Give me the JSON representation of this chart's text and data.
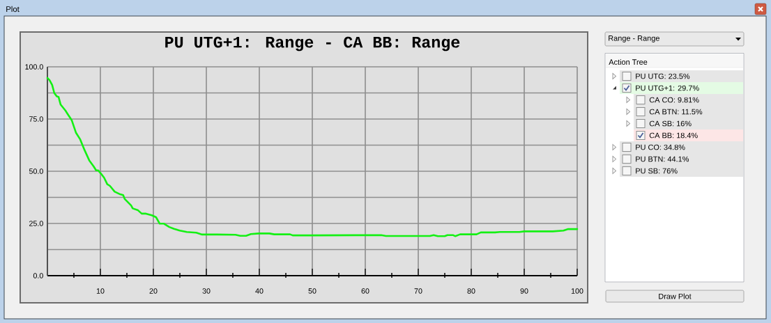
{
  "chart_data": [
    {
      "type": "line",
      "title": "PU UTG+1: Range - CA BB: Range",
      "x": [
        0,
        0.4,
        0.9,
        1.3,
        1.8,
        2.1,
        2.5,
        3.4,
        3.9,
        4.6,
        5.4,
        6.2,
        7.0,
        7.9,
        8.7,
        9.2,
        9.6,
        10.1,
        10.7,
        11.3,
        11.8,
        12.7,
        13.6,
        14.3,
        14.6,
        15.8,
        16.1,
        17.1,
        17.8,
        18.6,
        19.7,
        20.5,
        21.2,
        22.0,
        23.0,
        23.9,
        25.0,
        26.3,
        28.1,
        29.2,
        32.0,
        35.5,
        36.4,
        37.5,
        38.4,
        39.9,
        41.9,
        42.8,
        45.8,
        46.3,
        50.0,
        63.0,
        63.9,
        72.2,
        72.9,
        73.7,
        75.0,
        75.5,
        76.6,
        77.0,
        77.9,
        81.0,
        81.8,
        84.5,
        85.4,
        89.1,
        90.0,
        95.4,
        97.4,
        98.3,
        100.0
      ],
      "values": [
        94.7,
        93.6,
        91.3,
        87.4,
        85.8,
        85.6,
        81.9,
        79.1,
        77.1,
        74.4,
        68.4,
        65.2,
        60.2,
        55.2,
        52.4,
        50.4,
        50.4,
        48.9,
        46.9,
        43.8,
        43.0,
        40.2,
        39.1,
        38.6,
        36.7,
        33.6,
        32.2,
        31.3,
        29.7,
        29.7,
        28.9,
        28.0,
        24.9,
        24.9,
        23.3,
        22.4,
        21.6,
        20.9,
        20.6,
        19.7,
        19.7,
        19.6,
        19.1,
        19.1,
        19.9,
        20.2,
        20.2,
        19.8,
        19.8,
        19.3,
        19.3,
        19.4,
        19.0,
        19.0,
        19.4,
        18.9,
        18.9,
        19.4,
        19.4,
        18.9,
        19.8,
        19.8,
        20.7,
        20.7,
        20.9,
        20.9,
        21.2,
        21.2,
        21.6,
        22.3,
        22.3
      ],
      "color": "#14f014",
      "xlim": [
        0,
        100
      ],
      "ylim": [
        0,
        100
      ],
      "xticks": [
        {
          "value": 5,
          "label": null
        },
        10,
        {
          "value": 15,
          "label": null
        },
        20,
        {
          "value": 25,
          "label": null
        },
        30,
        {
          "value": 35,
          "label": null
        },
        40,
        {
          "value": 45,
          "label": null
        },
        50,
        {
          "value": 55,
          "label": null
        },
        60,
        {
          "value": 65,
          "label": null
        },
        70,
        {
          "value": 75,
          "label": null
        },
        80,
        {
          "value": 85,
          "label": null
        },
        90,
        {
          "value": 95,
          "label": null
        },
        100
      ],
      "yticks": [
        {
          "value": 0,
          "label": "0.0"
        },
        {
          "value": 12.5,
          "label": null
        },
        {
          "value": 25,
          "label": "25.0"
        },
        {
          "value": 37.5,
          "label": null
        },
        {
          "value": 50,
          "label": "50.0"
        },
        {
          "value": 62.5,
          "label": null
        },
        {
          "value": 75,
          "label": "75.0"
        },
        {
          "value": 87.5,
          "label": null
        },
        {
          "value": 100,
          "label": "100.0"
        }
      ],
      "grid": true
    },
    {
      "type": "other",
      "title": "Action Tree",
      "annotations": [
        "Plot",
        "Range - Range",
        "PU UTG: 23.5%",
        "PU UTG+1: 29.7%",
        "CA CO: 9.81%",
        "CA BTN: 11.5%",
        "CA SB: 16%",
        "CA BB: 18.4%",
        "PU CO: 34.8%",
        "PU BTN: 44.1%",
        "PU SB: 76%",
        "Draw Plot"
      ]
    }
  ]
}
